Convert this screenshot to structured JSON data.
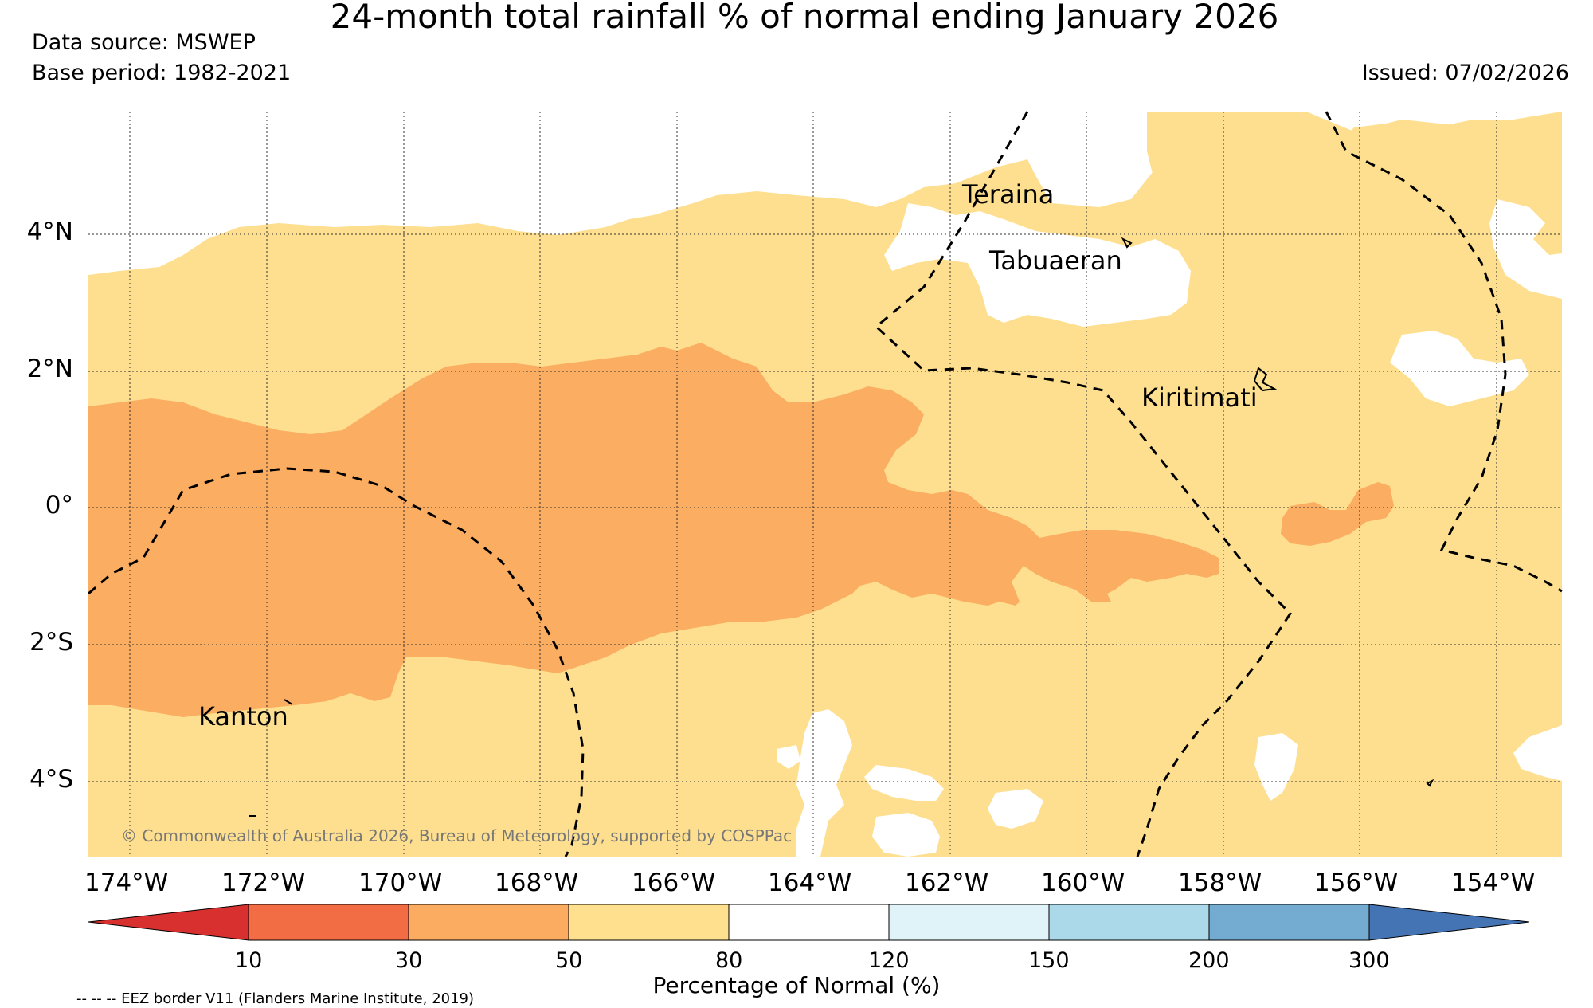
{
  "title": "24-month total rainfall % of normal ending January 2026",
  "data_source": "Data source: MSWEP",
  "base_period": "Base period: 1982-2021",
  "issued": "Issued: 07/02/2026",
  "copyright": "© Commonwealth of Australia 2026, Bureau of Meteorology, supported by COSPPac",
  "places": {
    "teraina": "Teraina",
    "tabuaeran": "Tabuaeran",
    "kiritimati": "Kiritimati",
    "kanton": "Kanton"
  },
  "lat_labels": [
    "4°N",
    "2°N",
    "0°",
    "2°S",
    "4°S"
  ],
  "lon_labels": [
    "174°W",
    "172°W",
    "170°W",
    "168°W",
    "166°W",
    "164°W",
    "162°W",
    "160°W",
    "158°W",
    "156°W",
    "154°W"
  ],
  "colorbar": {
    "title": "Percentage of Normal (%)",
    "ticks": [
      "10",
      "30",
      "50",
      "80",
      "120",
      "150",
      "200",
      "300"
    ],
    "colors": [
      "#d7302f",
      "#f26c44",
      "#fcac60",
      "#fee08f",
      "#ffffff",
      "#e0f3f8",
      "#abd9e9",
      "#74acd1",
      "#4574b4"
    ]
  },
  "map_colors": {
    "band_50_80": "#fddf8f",
    "band_30_50": "#fbad61",
    "band_80_120": "#ffffff"
  },
  "legend_note": "-- -- -- EEZ border V11 (Flanders Marine Institute, 2019)"
}
